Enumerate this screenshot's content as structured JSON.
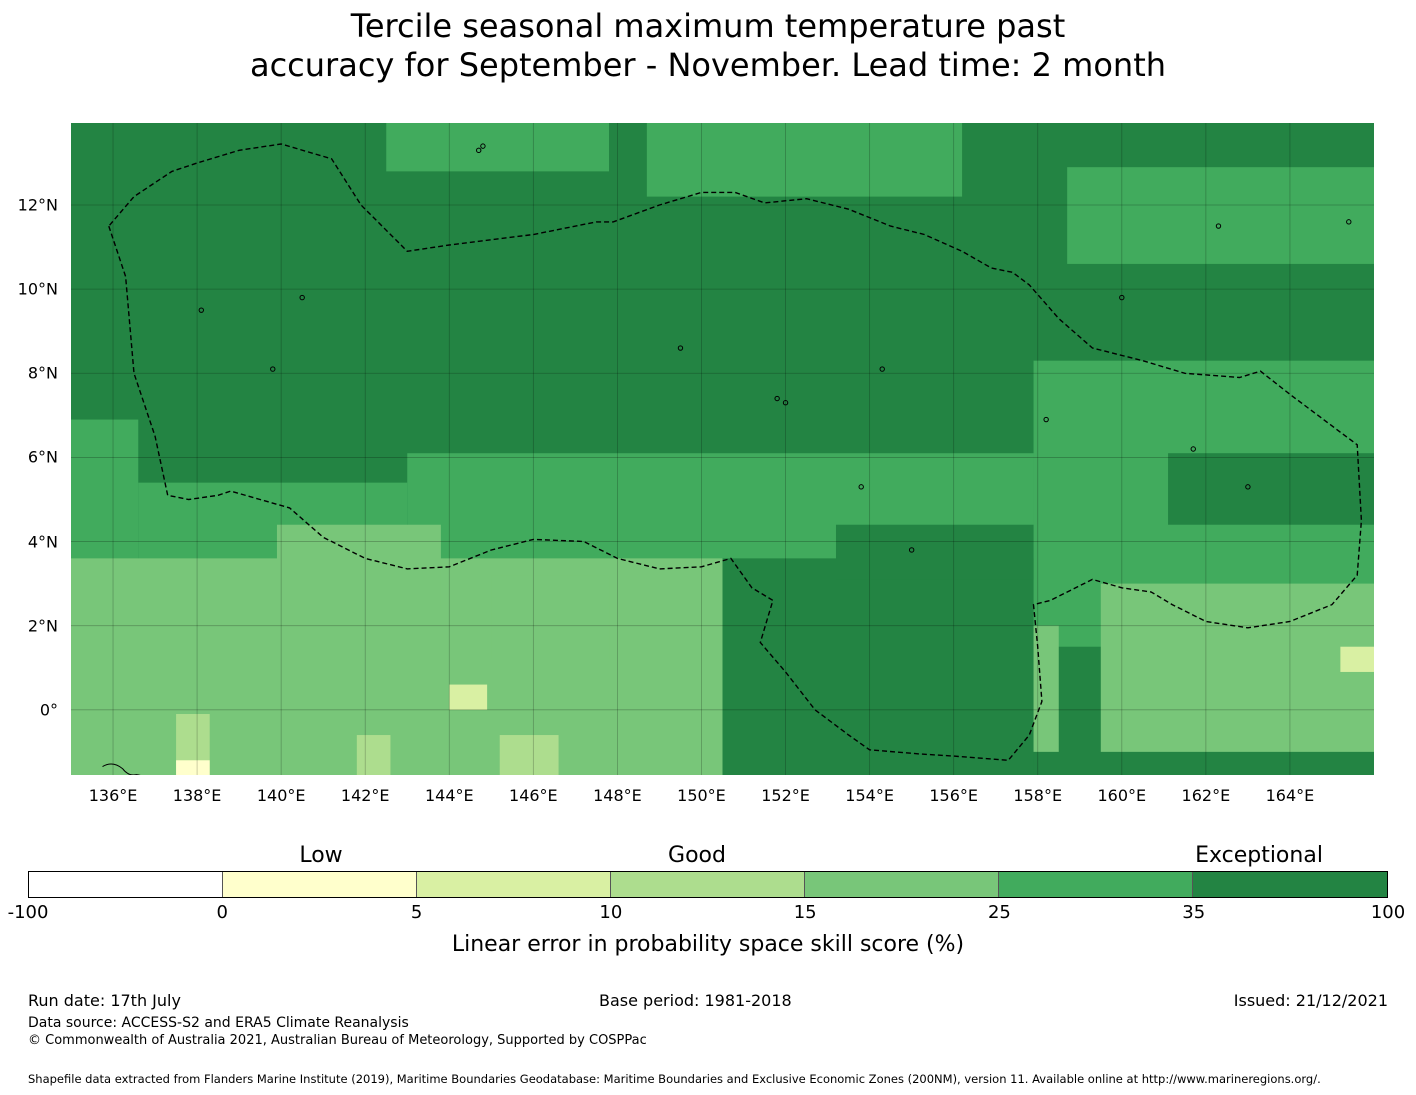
{
  "title": {
    "line1": "Tercile seasonal maximum temperature past",
    "line2": "accuracy for September - November. Lead time: 2 month"
  },
  "map": {
    "lat_ticks": [
      12,
      10,
      8,
      6,
      4,
      2,
      0
    ],
    "lat_labels": [
      "12°N",
      "10°N",
      "8°N",
      "6°N",
      "4°N",
      "2°N",
      "0°"
    ],
    "lon_ticks": [
      136,
      138,
      140,
      142,
      144,
      146,
      148,
      150,
      152,
      154,
      156,
      158,
      160,
      162,
      164
    ],
    "lon_labels": [
      "136°E",
      "138°E",
      "140°E",
      "142°E",
      "144°E",
      "146°E",
      "148°E",
      "150°E",
      "152°E",
      "154°E",
      "156°E",
      "158°E",
      "160°E",
      "162°E",
      "164°E"
    ],
    "extent": {
      "lon_min": 135.0,
      "lon_max": 166.0,
      "lat_min": -1.55,
      "lat_max": 13.95
    },
    "grid_step_deg": 0.833,
    "skill_class_colors": {
      "c0": "#ffffcc",
      "c1": "#d9f0a3",
      "c2": "#addd8e",
      "c3": "#78c679",
      "c4": "#41ab5d",
      "c5": "#238443"
    },
    "skill_regions": [
      {
        "class": "c4",
        "lon": [
          135.0,
          136.6
        ],
        "lat": [
          6.9,
          2.4
        ]
      },
      {
        "class": "c4",
        "lon": [
          136.6,
          143.0
        ],
        "lat": [
          5.4,
          2.4
        ]
      },
      {
        "class": "c4",
        "lon": [
          143.0,
          150.5
        ],
        "lat": [
          6.1,
          1.2
        ]
      },
      {
        "class": "c4",
        "lon": [
          150.5,
          157.9
        ],
        "lat": [
          6.1,
          -1.0
        ]
      },
      {
        "class": "c4",
        "lon": [
          157.9,
          166.0
        ],
        "lat": [
          8.3,
          1.5
        ]
      },
      {
        "class": "c4",
        "lon": [
          142.5,
          147.8
        ],
        "lat": [
          14.0,
          12.8
        ]
      },
      {
        "class": "c4",
        "lon": [
          148.7,
          156.2
        ],
        "lat": [
          14.0,
          12.2
        ]
      },
      {
        "class": "c4",
        "lon": [
          158.7,
          166.0
        ],
        "lat": [
          12.9,
          10.6
        ]
      },
      {
        "class": "c3",
        "lon": [
          135.0,
          150.5
        ],
        "lat": [
          3.6,
          -1.6
        ]
      },
      {
        "class": "c3",
        "lon": [
          155.6,
          158.5
        ],
        "lat": [
          2.0,
          -1.0
        ]
      },
      {
        "class": "c3",
        "lon": [
          159.5,
          166.0
        ],
        "lat": [
          3.0,
          -1.0
        ]
      },
      {
        "class": "c3",
        "lon": [
          139.9,
          143.8
        ],
        "lat": [
          4.4,
          2.4
        ]
      },
      {
        "class": "c3",
        "lon": [
          145.0,
          147.8
        ],
        "lat": [
          3.2,
          1.2
        ]
      },
      {
        "class": "c2",
        "lon": [
          145.2,
          146.6
        ],
        "lat": [
          -0.6,
          -1.6
        ]
      },
      {
        "class": "c2",
        "lon": [
          137.5,
          138.3
        ],
        "lat": [
          -0.1,
          -1.6
        ]
      },
      {
        "class": "c2",
        "lon": [
          141.8,
          142.6
        ],
        "lat": [
          -0.6,
          -1.6
        ]
      },
      {
        "class": "c1",
        "lon": [
          144.0,
          144.9
        ],
        "lat": [
          0.6,
          0.0
        ]
      },
      {
        "class": "c1",
        "lon": [
          165.2,
          166.0
        ],
        "lat": [
          1.5,
          0.9
        ]
      },
      {
        "class": "c0",
        "lon": [
          137.5,
          138.3
        ],
        "lat": [
          -1.2,
          -1.6
        ]
      },
      {
        "class": "c5",
        "lon": [
          150.5,
          157.9
        ],
        "lat": [
          3.6,
          -1.6
        ]
      },
      {
        "class": "c5",
        "lon": [
          161.1,
          166.0
        ],
        "lat": [
          6.1,
          4.4
        ]
      },
      {
        "class": "c5",
        "lon": [
          153.2,
          157.9
        ],
        "lat": [
          4.4,
          3.1
        ]
      }
    ],
    "eez_boundaries": [
      [
        [
          135.9,
          11.5
        ],
        [
          136.3,
          10.3
        ],
        [
          136.5,
          8.0
        ],
        [
          137.0,
          6.5
        ],
        [
          137.3,
          5.1
        ],
        [
          137.8,
          5.0
        ],
        [
          138.5,
          5.1
        ],
        [
          138.8,
          5.2
        ],
        [
          139.5,
          5.0
        ],
        [
          140.2,
          4.8
        ],
        [
          141.0,
          4.1
        ],
        [
          142.0,
          3.6
        ],
        [
          143.0,
          3.35
        ],
        [
          144.0,
          3.4
        ],
        [
          145.0,
          3.8
        ],
        [
          146.0,
          4.05
        ],
        [
          147.2,
          4.0
        ],
        [
          148.0,
          3.6
        ],
        [
          149.0,
          3.35
        ],
        [
          150.0,
          3.4
        ],
        [
          150.7,
          3.6
        ],
        [
          151.2,
          2.9
        ],
        [
          151.7,
          2.6
        ],
        [
          151.4,
          1.6
        ],
        [
          152.0,
          0.9
        ],
        [
          152.7,
          0.0
        ],
        [
          153.5,
          -0.6
        ],
        [
          154.0,
          -0.95
        ],
        [
          155.2,
          -1.05
        ],
        [
          156.0,
          -1.1
        ],
        [
          157.3,
          -1.2
        ],
        [
          157.8,
          -0.6
        ],
        [
          158.1,
          0.2
        ],
        [
          158.0,
          1.5
        ],
        [
          157.9,
          2.5
        ],
        [
          158.3,
          2.6
        ],
        [
          159.3,
          3.1
        ],
        [
          160.0,
          2.9
        ],
        [
          160.7,
          2.8
        ],
        [
          161.2,
          2.5
        ],
        [
          162.0,
          2.1
        ],
        [
          163.0,
          1.95
        ],
        [
          164.0,
          2.1
        ],
        [
          165.0,
          2.5
        ],
        [
          165.6,
          3.2
        ],
        [
          165.7,
          4.5
        ],
        [
          165.6,
          6.3
        ],
        [
          164.8,
          6.9
        ],
        [
          164.0,
          7.5
        ],
        [
          163.3,
          8.05
        ],
        [
          162.8,
          7.9
        ],
        [
          161.5,
          8.0
        ],
        [
          160.5,
          8.3
        ],
        [
          159.3,
          8.6
        ],
        [
          158.5,
          9.3
        ],
        [
          157.8,
          10.1
        ],
        [
          157.4,
          10.4
        ],
        [
          156.9,
          10.5
        ],
        [
          156.2,
          10.9
        ],
        [
          155.3,
          11.3
        ],
        [
          154.5,
          11.5
        ],
        [
          153.5,
          11.9
        ],
        [
          152.5,
          12.15
        ],
        [
          151.5,
          12.05
        ],
        [
          150.8,
          12.3
        ],
        [
          150.0,
          12.3
        ],
        [
          149.0,
          12.0
        ],
        [
          147.9,
          11.6
        ],
        [
          147.5,
          11.6
        ],
        [
          146.0,
          11.3
        ],
        [
          144.0,
          11.05
        ],
        [
          143.0,
          10.9
        ],
        [
          141.9,
          12.0
        ],
        [
          141.2,
          13.1
        ],
        [
          140.0,
          13.45
        ],
        [
          139.0,
          13.3
        ],
        [
          138.0,
          13.0
        ],
        [
          137.4,
          12.8
        ],
        [
          136.5,
          12.2
        ],
        [
          135.9,
          11.5
        ]
      ]
    ],
    "islands": [
      [
        144.8,
        13.4
      ],
      [
        144.7,
        13.3
      ],
      [
        138.1,
        9.5
      ],
      [
        140.5,
        9.8
      ],
      [
        139.8,
        8.1
      ],
      [
        149.5,
        8.6
      ],
      [
        151.8,
        7.4
      ],
      [
        152.0,
        7.3
      ],
      [
        154.3,
        8.1
      ],
      [
        158.2,
        6.9
      ],
      [
        153.8,
        5.3
      ],
      [
        163.0,
        5.3
      ],
      [
        161.7,
        6.2
      ],
      [
        155.0,
        3.8
      ],
      [
        160.0,
        9.8
      ],
      [
        162.3,
        11.5
      ],
      [
        165.4,
        11.6
      ]
    ]
  },
  "colorbar": {
    "categories": [
      "Low",
      "Good",
      "Exceptional"
    ],
    "ticks": [
      "-100",
      "0",
      "5",
      "10",
      "15",
      "25",
      "35",
      "100"
    ],
    "segment_colors": [
      "#ffffff",
      "#ffffcc",
      "#d9f0a3",
      "#addd8e",
      "#78c679",
      "#41ab5d",
      "#238443"
    ],
    "label": "Linear error in probability space skill score (%)"
  },
  "footer": {
    "run_date": "Run date: 17th July",
    "base_period": "Base period: 1981-2018",
    "issued": "Issued: 21/12/2021",
    "data_source": "Data source: ACCESS-S2 and ERA5 Climate Reanalysis",
    "copyright": "© Commonwealth of Australia 2021, Australian Bureau of Meteorology, Supported by COSPPac",
    "shapefile": "Shapefile data extracted from Flanders Marine Institute (2019), Maritime Boundaries Geodatabase: Maritime Boundaries and Exclusive Economic Zones (200NM), version 11. Available online at http://www.marineregions.org/."
  }
}
